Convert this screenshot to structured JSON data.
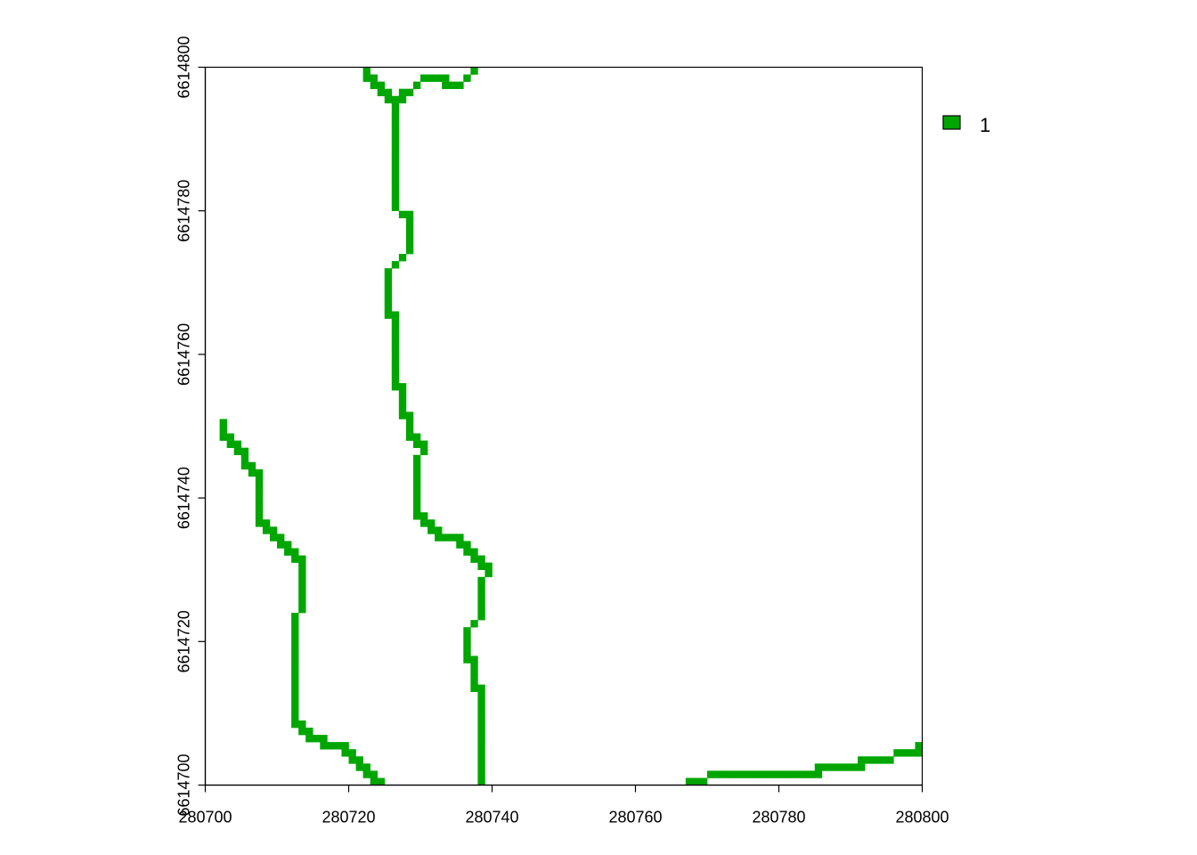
{
  "chart_data": {
    "type": "heatmap",
    "title": "",
    "xlabel": "",
    "ylabel": "",
    "xlim": [
      280700,
      280800
    ],
    "ylim": [
      6614700,
      6614800
    ],
    "grid": false,
    "cell_size": 1,
    "x_ticks": [
      "280700",
      "280720",
      "280740",
      "280760",
      "280780",
      "280800"
    ],
    "y_ticks": [
      "6614700",
      "6614720",
      "6614740",
      "6614760",
      "6614780",
      "6614800"
    ],
    "legend": {
      "placement": "top-right",
      "entries": [
        {
          "label": "1",
          "color": "#00a600"
        }
      ]
    },
    "series": [
      {
        "value": 1,
        "color": "#00a600",
        "paths": [
          [
            [
              280722.5,
              6614800
            ],
            [
              280722.5,
              6614798.5
            ],
            [
              280723.5,
              6614797.5
            ],
            [
              280724.5,
              6614796.5
            ],
            [
              280725.5,
              6614795.5
            ],
            [
              280726.5,
              6614795.5
            ],
            [
              280726.5,
              6614780
            ],
            [
              280727.5,
              6614779.5
            ],
            [
              280728.5,
              6614778.5
            ],
            [
              280728.5,
              6614774.5
            ],
            [
              280727.5,
              6614773.5
            ],
            [
              280726.5,
              6614772.5
            ],
            [
              280725.5,
              6614771.5
            ],
            [
              280725.5,
              6614765.5
            ],
            [
              280726.5,
              6614764.5
            ],
            [
              280726.5,
              6614755.5
            ],
            [
              280727.5,
              6614754.5
            ],
            [
              280727.5,
              6614751.5
            ],
            [
              280728.5,
              6614750.5
            ],
            [
              280728.5,
              6614748.5
            ],
            [
              280729.5,
              6614747.5
            ],
            [
              280730.5,
              6614746.5
            ],
            [
              280729.5,
              6614745.5
            ],
            [
              280729.5,
              6614737.5
            ],
            [
              280730.5,
              6614736.5
            ],
            [
              280731.5,
              6614735.5
            ],
            [
              280732.5,
              6614734.5
            ],
            [
              280734.5,
              6614734.5
            ],
            [
              280735.5,
              6614733.5
            ],
            [
              280736.5,
              6614733.5
            ],
            [
              280736.5,
              6614732.5
            ],
            [
              280737.5,
              6614731.5
            ],
            [
              280738.5,
              6614730.5
            ],
            [
              280739.5,
              6614729.5
            ],
            [
              280738.5,
              6614728.5
            ],
            [
              280738.5,
              6614723.5
            ],
            [
              280737.5,
              6614722.5
            ],
            [
              280736.5,
              6614721.5
            ],
            [
              280736.5,
              6614717.5
            ],
            [
              280737.5,
              6614716.5
            ],
            [
              280737.5,
              6614713.5
            ],
            [
              280738.5,
              6614712.5
            ],
            [
              280738.5,
              6614700
            ]
          ],
          [
            [
              280726.5,
              6614795.5
            ],
            [
              280728.5,
              6614796.5
            ],
            [
              280729.5,
              6614797.5
            ],
            [
              280730.5,
              6614798.5
            ],
            [
              280732.5,
              6614798.5
            ],
            [
              280733.5,
              6614797.5
            ],
            [
              280735.5,
              6614797.5
            ],
            [
              280736.5,
              6614798.5
            ],
            [
              280737.5,
              6614799.5
            ]
          ],
          [
            [
              280702.5,
              6614750
            ],
            [
              280702.5,
              6614748.5
            ],
            [
              280703.5,
              6614747.5
            ],
            [
              280704.5,
              6614746.5
            ],
            [
              280705.5,
              6614745.5
            ],
            [
              280705.5,
              6614744.5
            ],
            [
              280706.5,
              6614743.5
            ],
            [
              280707.5,
              6614742.5
            ],
            [
              280707.5,
              6614736.5
            ],
            [
              280708.5,
              6614735.5
            ],
            [
              280709.5,
              6614734.5
            ],
            [
              280710.5,
              6614733.5
            ],
            [
              280711.5,
              6614732.5
            ],
            [
              280712.5,
              6614731.5
            ],
            [
              280713.5,
              6614730.5
            ],
            [
              280713.5,
              6614724.5
            ],
            [
              280712.5,
              6614723.5
            ],
            [
              280712.5,
              6614708.5
            ],
            [
              280713.5,
              6614707.5
            ],
            [
              280714.5,
              6614706.5
            ],
            [
              280715.5,
              6614706.5
            ],
            [
              280716.5,
              6614705.5
            ],
            [
              280718.5,
              6614705.5
            ],
            [
              280719.5,
              6614704.5
            ],
            [
              280720.5,
              6614703.5
            ],
            [
              280721.5,
              6614702.5
            ],
            [
              280722.5,
              6614701.5
            ],
            [
              280723.5,
              6614700.5
            ],
            [
              280724.5,
              6614699.5
            ]
          ],
          [
            [
              280767.5,
              6614700.5
            ],
            [
              280769.5,
              6614700.5
            ],
            [
              280770.5,
              6614701.5
            ],
            [
              280785.5,
              6614701.5
            ],
            [
              280785.5,
              6614702.5
            ],
            [
              280791.5,
              6614702.5
            ],
            [
              280791.5,
              6614703.5
            ],
            [
              280795.5,
              6614703.5
            ],
            [
              280796.5,
              6614704.5
            ],
            [
              280799.5,
              6614704.5
            ],
            [
              280800,
              6614705.5
            ]
          ]
        ]
      }
    ]
  }
}
